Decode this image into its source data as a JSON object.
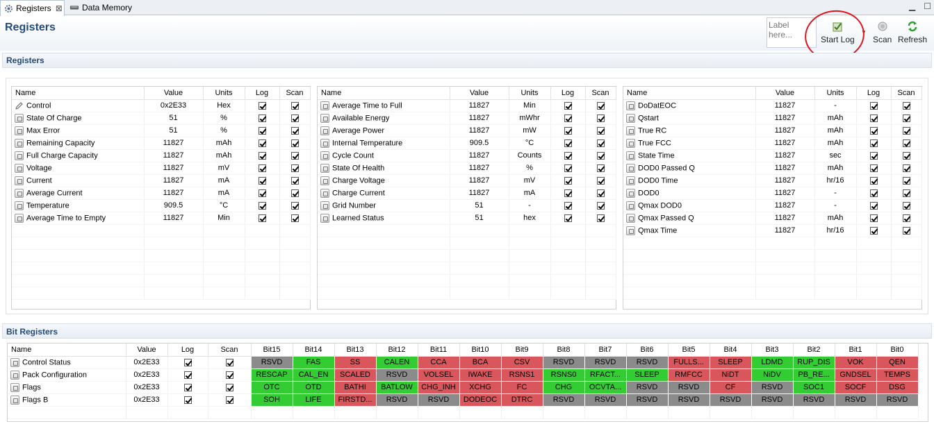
{
  "tabs": [
    {
      "label": "Registers",
      "icon": "gear-icon"
    },
    {
      "label": "Data Memory",
      "icon": "chip-icon"
    }
  ],
  "page_title": "Registers",
  "toolbar": {
    "label_placeholder": "Label here...",
    "start_log": "Start Log",
    "scan": "Scan",
    "refresh": "Refresh"
  },
  "registers_section": "Registers",
  "bit_section": "Bit Registers",
  "columns": {
    "name": "Name",
    "value": "Value",
    "units": "Units",
    "log": "Log",
    "scan": "Scan"
  },
  "panel1": [
    {
      "name": "Control",
      "value": "0x2E33",
      "units": "Hex",
      "icon": "edit"
    },
    {
      "name": "State Of Charge",
      "value": "51",
      "units": "%"
    },
    {
      "name": "Max Error",
      "value": "51",
      "units": "%"
    },
    {
      "name": "Remaining Capacity",
      "value": "11827",
      "units": "mAh"
    },
    {
      "name": "Full Charge Capacity",
      "value": "11827",
      "units": "mAh"
    },
    {
      "name": "Voltage",
      "value": "11827",
      "units": "mV"
    },
    {
      "name": "Current",
      "value": "11827",
      "units": "mA"
    },
    {
      "name": "Average Current",
      "value": "11827",
      "units": "mA"
    },
    {
      "name": "Temperature",
      "value": "909.5",
      "units": "°C"
    },
    {
      "name": "Average Time to Empty",
      "value": "11827",
      "units": "Min"
    }
  ],
  "panel2": [
    {
      "name": "Average Time to Full",
      "value": "11827",
      "units": "Min"
    },
    {
      "name": "Available Energy",
      "value": "11827",
      "units": "mWhr"
    },
    {
      "name": "Average Power",
      "value": "11827",
      "units": "mW"
    },
    {
      "name": "Internal Temperature",
      "value": "909.5",
      "units": "°C"
    },
    {
      "name": "Cycle Count",
      "value": "11827",
      "units": "Counts"
    },
    {
      "name": "State Of Health",
      "value": "11827",
      "units": "%"
    },
    {
      "name": "Charge Voltage",
      "value": "11827",
      "units": "mV"
    },
    {
      "name": "Charge Current",
      "value": "11827",
      "units": "mA"
    },
    {
      "name": "Grid Number",
      "value": "51",
      "units": "-"
    },
    {
      "name": "Learned Status",
      "value": "51",
      "units": "hex"
    }
  ],
  "panel3": [
    {
      "name": "DoDatEOC",
      "value": "11827",
      "units": "-"
    },
    {
      "name": "Qstart",
      "value": "11827",
      "units": "mAh"
    },
    {
      "name": "True RC",
      "value": "11827",
      "units": "mAh"
    },
    {
      "name": "True FCC",
      "value": "11827",
      "units": "mAh"
    },
    {
      "name": "State Time",
      "value": "11827",
      "units": "sec"
    },
    {
      "name": "DOD0 Passed Q",
      "value": "11827",
      "units": "mAh"
    },
    {
      "name": "DOD0 Time",
      "value": "11827",
      "units": "hr/16"
    },
    {
      "name": "DOD0",
      "value": "11827",
      "units": "-"
    },
    {
      "name": "Qmax DOD0",
      "value": "11827",
      "units": "-"
    },
    {
      "name": "Qmax Passed Q",
      "value": "11827",
      "units": "mAh"
    },
    {
      "name": "Qmax Time",
      "value": "11827",
      "units": "hr/16"
    }
  ],
  "bit_headers": [
    "Bit15",
    "Bit14",
    "Bit13",
    "Bit12",
    "Bit11",
    "Bit10",
    "Bit9",
    "Bit8",
    "Bit7",
    "Bit6",
    "Bit5",
    "Bit4",
    "Bit3",
    "Bit2",
    "Bit1",
    "Bit0"
  ],
  "bit_rows": [
    {
      "name": "Control Status",
      "value": "0x2E33",
      "bits": [
        [
          "RSVD",
          "y"
        ],
        [
          "FAS",
          "g"
        ],
        [
          "SS",
          "r"
        ],
        [
          "CALEN",
          "g"
        ],
        [
          "CCA",
          "r"
        ],
        [
          "BCA",
          "r"
        ],
        [
          "CSV",
          "r"
        ],
        [
          "RSVD",
          "y"
        ],
        [
          "RSVD",
          "y"
        ],
        [
          "RSVD",
          "y"
        ],
        [
          "FULLS...",
          "r"
        ],
        [
          "SLEEP",
          "r"
        ],
        [
          "LDMD",
          "g"
        ],
        [
          "RUP_DIS",
          "g"
        ],
        [
          "VOK",
          "r"
        ],
        [
          "QEN",
          "r"
        ]
      ]
    },
    {
      "name": "Pack Configuration",
      "value": "0x2E33",
      "bits": [
        [
          "RESCAP",
          "g"
        ],
        [
          "CAL_EN",
          "g"
        ],
        [
          "SCALED",
          "r"
        ],
        [
          "RSVD",
          "y"
        ],
        [
          "VOLSEL",
          "r"
        ],
        [
          "IWAKE",
          "r"
        ],
        [
          "RSNS1",
          "r"
        ],
        [
          "RSNS0",
          "g"
        ],
        [
          "RFACT...",
          "g"
        ],
        [
          "SLEEP",
          "g"
        ],
        [
          "RMFCC",
          "r"
        ],
        [
          "NiDT",
          "r"
        ],
        [
          "NiDV",
          "g"
        ],
        [
          "PB_RE...",
          "g"
        ],
        [
          "GNDSEL",
          "r"
        ],
        [
          "TEMPS",
          "r"
        ]
      ]
    },
    {
      "name": "Flags",
      "value": "0x2E33",
      "bits": [
        [
          "OTC",
          "g"
        ],
        [
          "OTD",
          "g"
        ],
        [
          "BATHI",
          "r"
        ],
        [
          "BATLOW",
          "g"
        ],
        [
          "CHG_INH",
          "r"
        ],
        [
          "XCHG",
          "r"
        ],
        [
          "FC",
          "r"
        ],
        [
          "CHG",
          "g"
        ],
        [
          "OCVTA...",
          "g"
        ],
        [
          "RSVD",
          "y"
        ],
        [
          "RSVD",
          "y"
        ],
        [
          "CF",
          "r"
        ],
        [
          "RSVD",
          "y"
        ],
        [
          "SOC1",
          "g"
        ],
        [
          "SOCF",
          "r"
        ],
        [
          "DSG",
          "r"
        ]
      ]
    },
    {
      "name": "Flags B",
      "value": "0x2E33",
      "bits": [
        [
          "SOH",
          "g"
        ],
        [
          "LIFE",
          "g"
        ],
        [
          "FIRSTD...",
          "r"
        ],
        [
          "RSVD",
          "y"
        ],
        [
          "RSVD",
          "y"
        ],
        [
          "DODEOC",
          "r"
        ],
        [
          "DTRC",
          "r"
        ],
        [
          "RSVD",
          "y"
        ],
        [
          "RSVD",
          "y"
        ],
        [
          "RSVD",
          "y"
        ],
        [
          "RSVD",
          "y"
        ],
        [
          "RSVD",
          "y"
        ],
        [
          "RSVD",
          "y"
        ],
        [
          "RSVD",
          "y"
        ],
        [
          "RSVD",
          "y"
        ],
        [
          "RSVD",
          "y"
        ]
      ]
    }
  ],
  "colors": {
    "green": "#33cc33",
    "red": "#d9575c",
    "gray": "#8b8b8b",
    "title": "#244a78",
    "annotation": "#e0141e"
  }
}
